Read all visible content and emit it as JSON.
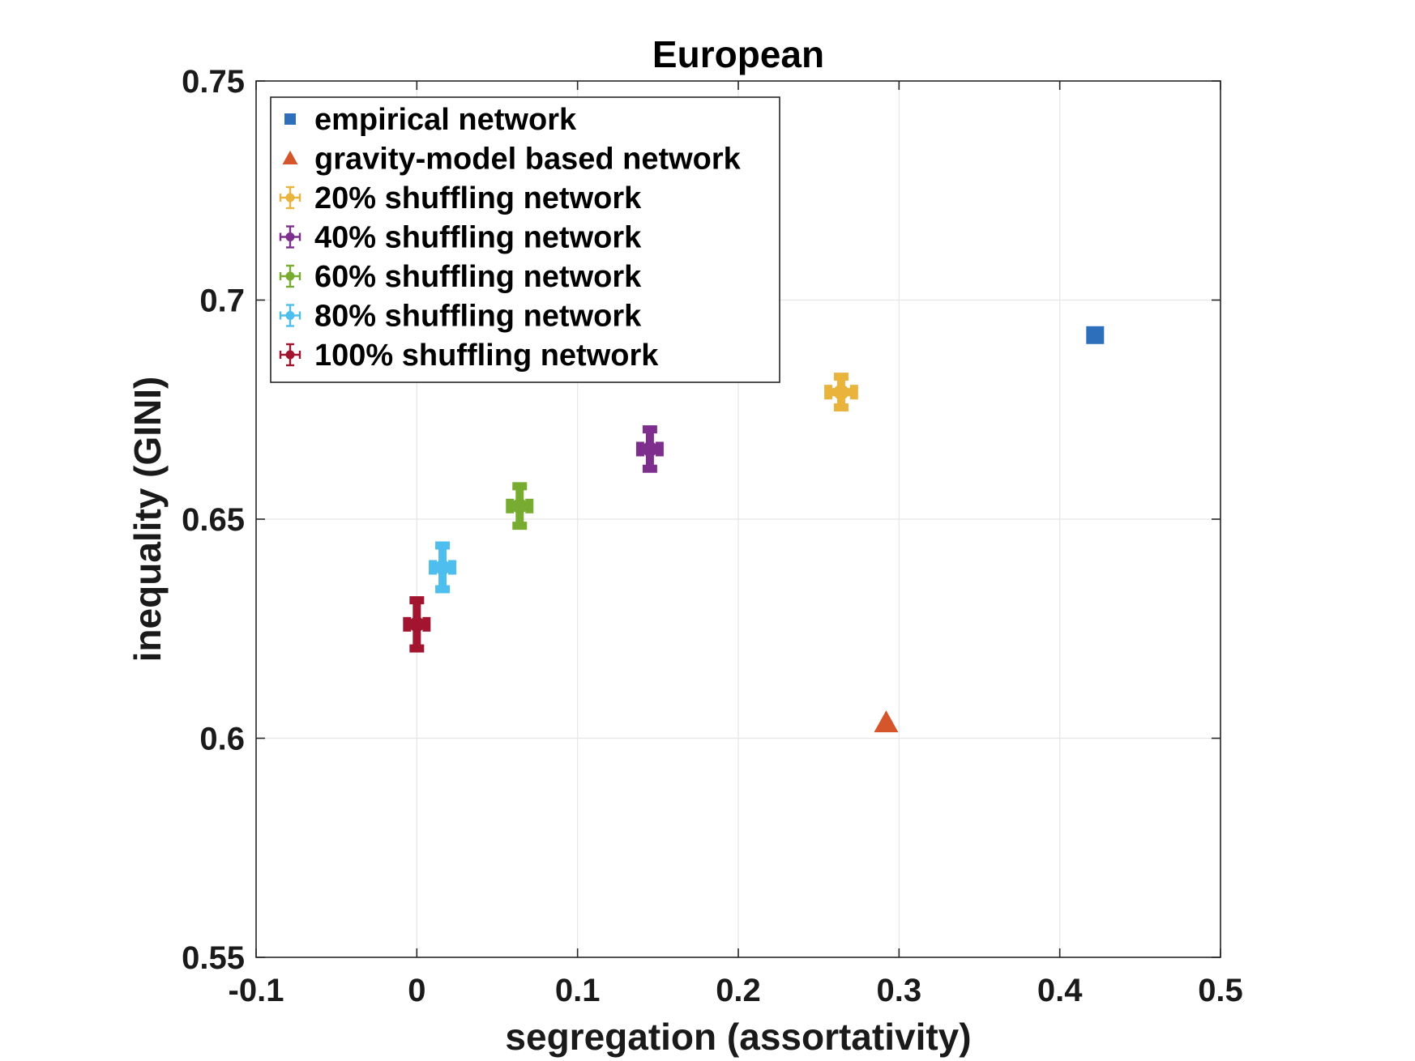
{
  "chart_data": {
    "type": "scatter",
    "title": "European",
    "xlabel": "segregation (assortativity)",
    "ylabel": "inequality (GINI)",
    "xlim": [
      -0.1,
      0.5
    ],
    "ylim": [
      0.55,
      0.75
    ],
    "xticks": [
      -0.1,
      0,
      0.1,
      0.2,
      0.3,
      0.4,
      0.5
    ],
    "xtick_labels": [
      "-0.1",
      "0",
      "0.1",
      "0.2",
      "0.3",
      "0.4",
      "0.5"
    ],
    "yticks": [
      0.55,
      0.6,
      0.65,
      0.7,
      0.75
    ],
    "ytick_labels": [
      "0.55",
      "0.6",
      "0.65",
      "0.7",
      "0.75"
    ],
    "grid": true,
    "legend_position": "top-left",
    "series": [
      {
        "name": "empirical network",
        "marker": "square",
        "color": "#2E6FBC",
        "x": 0.422,
        "y": 0.692
      },
      {
        "name": "gravity-model based network",
        "marker": "triangle",
        "color": "#D4562A",
        "x": 0.292,
        "y": 0.604
      },
      {
        "name": "20% shuffling network",
        "marker": "errorbar",
        "color": "#E9B33C",
        "x": 0.264,
        "y": 0.679,
        "xerr": 0.008,
        "yerr": 0.0035
      },
      {
        "name": "40% shuffling network",
        "marker": "errorbar",
        "color": "#7E2F8E",
        "x": 0.145,
        "y": 0.666,
        "xerr": 0.006,
        "yerr": 0.0045
      },
      {
        "name": "60% shuffling network",
        "marker": "errorbar",
        "color": "#77AC30",
        "x": 0.064,
        "y": 0.653,
        "xerr": 0.006,
        "yerr": 0.0045
      },
      {
        "name": "80% shuffling network",
        "marker": "errorbar",
        "color": "#4DBEEE",
        "x": 0.016,
        "y": 0.639,
        "xerr": 0.004,
        "yerr": 0.005
      },
      {
        "name": "100% shuffling network",
        "marker": "errorbar",
        "color": "#A2142F",
        "x": 0.0,
        "y": 0.626,
        "xerr": 0.004,
        "yerr": 0.0055
      }
    ]
  }
}
